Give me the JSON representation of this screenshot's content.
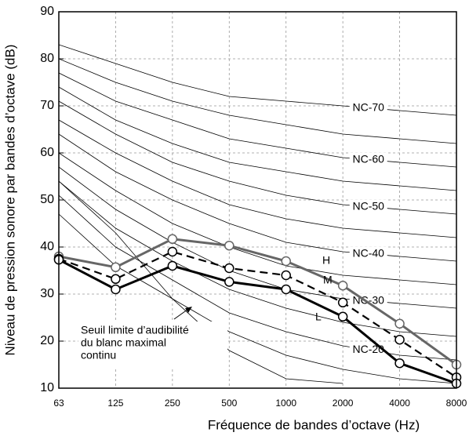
{
  "chart_data": {
    "type": "line",
    "x_label": "Fréquence de bandes d’octave (Hz)",
    "y_label": "Niveau de pression sonore par bandes d’octave (dB)",
    "categories": [
      "63",
      "125",
      "250",
      "500",
      "1000",
      "2000",
      "4000",
      "8000"
    ],
    "ylim": [
      10,
      90
    ],
    "yticks": [
      10,
      20,
      30,
      40,
      50,
      60,
      70,
      80,
      90
    ],
    "grid": true,
    "series": [
      {
        "name": "H",
        "color": "#666666",
        "dashed": false,
        "values": [
          38,
          35.7,
          41.7,
          40.3,
          37,
          31.8,
          23.7,
          15
        ]
      },
      {
        "name": "M",
        "color": "#000000",
        "dashed": true,
        "values": [
          37.5,
          33.2,
          39,
          35.5,
          34,
          28.2,
          20.3,
          12.3
        ]
      },
      {
        "name": "L",
        "color": "#000000",
        "dashed": false,
        "values": [
          37.3,
          31,
          36,
          32.6,
          31,
          25.2,
          15.3,
          11
        ]
      }
    ],
    "nc_curves": [
      {
        "name": "NC-70",
        "values": [
          83,
          79,
          75,
          72,
          71,
          70,
          69,
          68
        ]
      },
      {
        "values": [
          80,
          75,
          71,
          68,
          66,
          64,
          63,
          62
        ]
      },
      {
        "name": "NC-60",
        "values": [
          77,
          71,
          67,
          63,
          61,
          59,
          58,
          57
        ]
      },
      {
        "values": [
          74,
          67,
          62,
          58,
          56,
          54,
          53,
          52
        ]
      },
      {
        "name": "NC-50",
        "values": [
          71,
          64,
          58,
          54,
          51,
          49,
          48,
          47
        ]
      },
      {
        "values": [
          67,
          60,
          54,
          49,
          46,
          44,
          43,
          42
        ]
      },
      {
        "name": "NC-40",
        "values": [
          64,
          56,
          50,
          45,
          41,
          39,
          38,
          37
        ]
      },
      {
        "values": [
          60,
          52,
          45,
          40,
          36,
          34,
          33,
          32
        ]
      },
      {
        "name": "NC-30",
        "values": [
          57,
          48,
          41,
          35,
          31,
          29,
          28,
          27
        ]
      },
      {
        "values": [
          54,
          44,
          37,
          31,
          27,
          24,
          22,
          21
        ]
      },
      {
        "name": "NC-20",
        "values": [
          51,
          40,
          33,
          26,
          22,
          19,
          17,
          16
        ]
      },
      {
        "values": [
          47,
          36,
          29,
          22,
          17,
          14,
          12,
          11
        ]
      }
    ],
    "threshold": {
      "values": [
        54,
        43,
        29,
        18,
        12,
        11,
        null,
        null
      ],
      "label": [
        "Seuil limite d’audibilité",
        "du blanc maximal",
        "continu"
      ]
    }
  }
}
